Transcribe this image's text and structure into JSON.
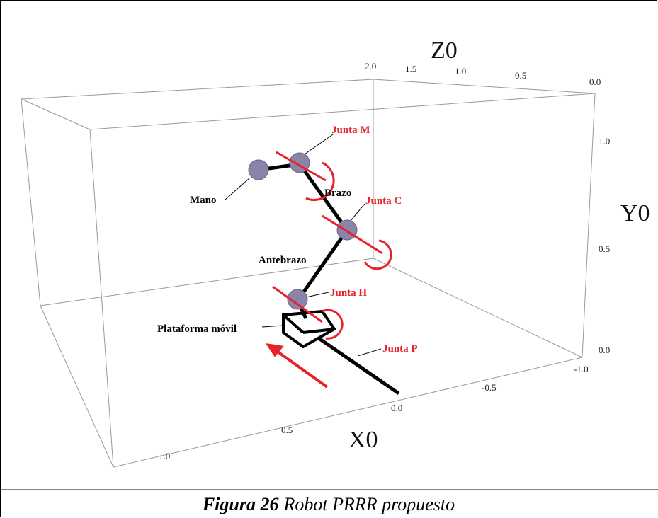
{
  "axes": {
    "z": {
      "label": "Z0",
      "ticks": [
        "2.0",
        "1.5",
        "1.0",
        "0.5",
        "0.0"
      ]
    },
    "y": {
      "label": "Y0",
      "ticks": [
        "1.0",
        "0.5",
        "0.0"
      ]
    },
    "x": {
      "label": "X0",
      "ticks": [
        "-1.0",
        "-0.5",
        "0.0",
        "0.5",
        "1.0"
      ]
    }
  },
  "labels": {
    "junta_m": "Junta M",
    "mano": "Mano",
    "brazo": "Brazo",
    "junta_c": "Junta C",
    "antebrazo": "Antebrazo",
    "junta_h": "Junta H",
    "plataforma": "Plataforma móvil",
    "junta_p": "Junta P"
  },
  "caption": {
    "number": "Figura 26",
    "text": "Robot PRRR propuesto"
  }
}
